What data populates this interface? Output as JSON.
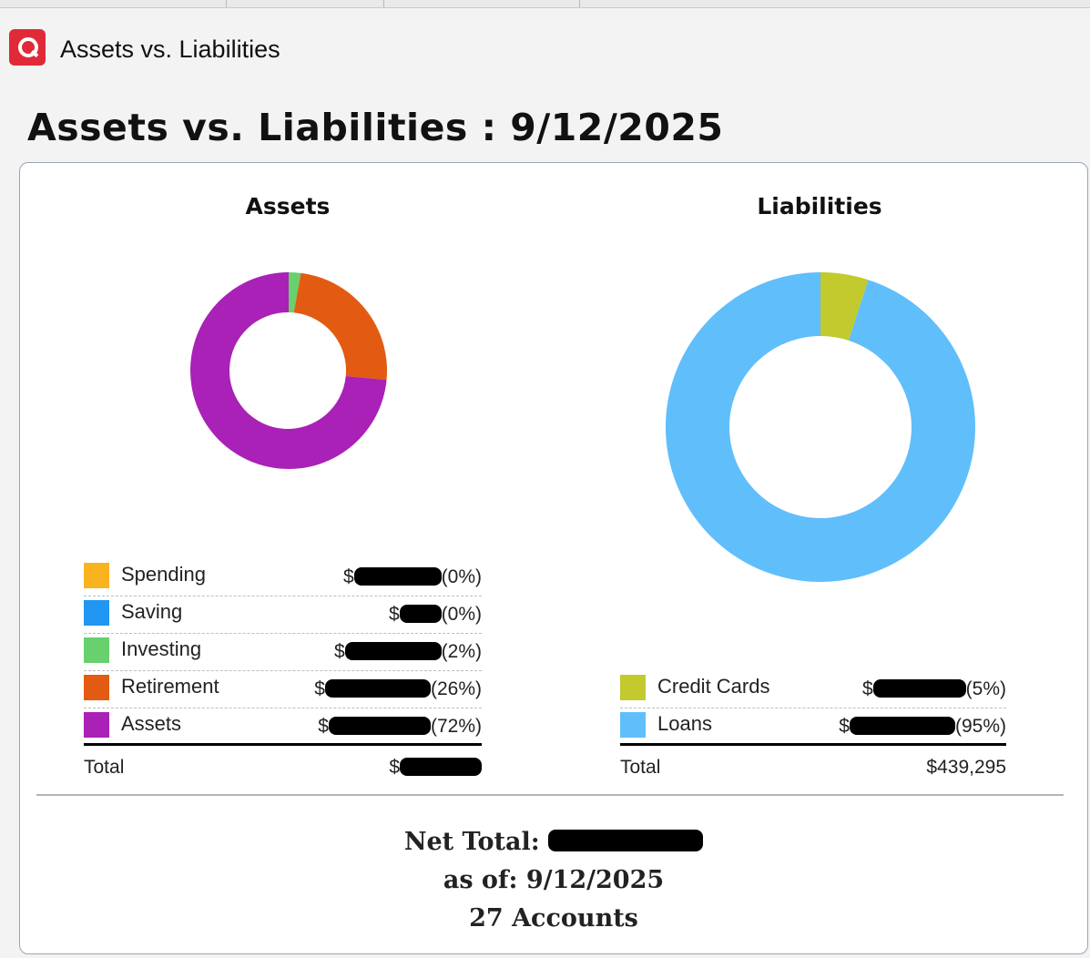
{
  "window": {
    "title": "Assets vs. Liabilities",
    "icon": "quicken-logo-icon"
  },
  "report": {
    "title": "Assets vs. Liabilities : 9/12/2025"
  },
  "colors": {
    "spending": "#F9B31E",
    "saving": "#2196F3",
    "investing": "#68D06D",
    "retirement": "#E35B12",
    "assets": "#A921B6",
    "credit_cards": "#C2CA2E",
    "loans": "#60BEFB"
  },
  "assets": {
    "title": "Assets",
    "items": [
      {
        "label": "Spending",
        "currency": "$",
        "pct": "(0%)",
        "color_key": "spending"
      },
      {
        "label": "Saving",
        "currency": "$",
        "pct": "(0%)",
        "color_key": "saving"
      },
      {
        "label": "Investing",
        "currency": "$",
        "pct": "(2%)",
        "color_key": "investing"
      },
      {
        "label": "Retirement",
        "currency": "$",
        "pct": "(26%)",
        "color_key": "retirement"
      },
      {
        "label": "Assets",
        "currency": "$",
        "pct": "(72%)",
        "color_key": "assets"
      }
    ],
    "total_label": "Total",
    "total_currency": "$"
  },
  "liabilities": {
    "title": "Liabilities",
    "items": [
      {
        "label": "Credit Cards",
        "currency": "$",
        "pct": "(5%)",
        "color_key": "credit_cards"
      },
      {
        "label": "Loans",
        "currency": "$",
        "pct": "(95%)",
        "color_key": "loans"
      }
    ],
    "total_label": "Total",
    "total_value": "$439,295"
  },
  "summary": {
    "net_total_label": "Net Total:",
    "as_of": "as of: 9/12/2025",
    "accounts": "27 Accounts"
  }
}
